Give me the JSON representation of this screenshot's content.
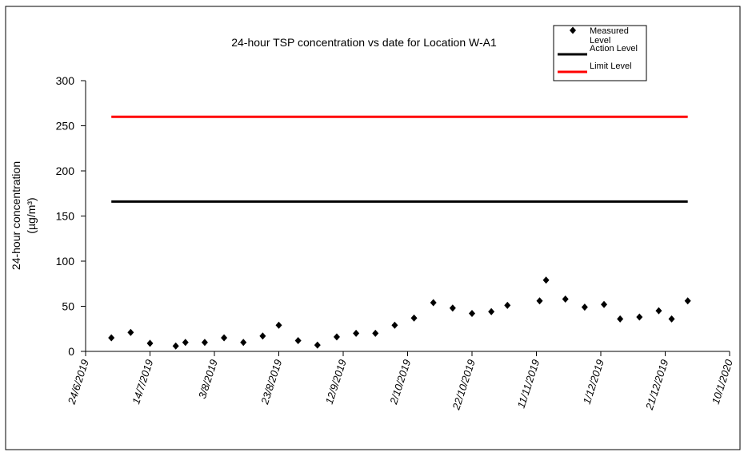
{
  "chart_data": {
    "type": "scatter",
    "title": "24-hour TSP concentration vs date for Location W-A1",
    "y_label": [
      "24-hour concentration",
      "(µg/m³)"
    ],
    "xlim": [
      "24/6/2019",
      "10/1/2020"
    ],
    "xticks": [
      "24/6/2019",
      "14/7/2019",
      "3/8/2019",
      "23/8/2019",
      "12/9/2019",
      "2/10/2019",
      "22/10/2019",
      "11/11/2019",
      "1/12/2019",
      "21/12/2019",
      "10/1/2020"
    ],
    "ylim": [
      0,
      300
    ],
    "yticks": [
      0,
      50,
      100,
      150,
      200,
      250,
      300
    ],
    "legend": "top-right",
    "series": [
      {
        "name": "Measured Level",
        "color": "#000000",
        "style": "marker",
        "x": [
          "2/7/2019",
          "8/7/2019",
          "14/7/2019",
          "22/7/2019",
          "25/7/2019",
          "31/7/2019",
          "6/8/2019",
          "12/8/2019",
          "18/8/2019",
          "23/8/2019",
          "29/8/2019",
          "4/9/2019",
          "10/9/2019",
          "16/9/2019",
          "22/9/2019",
          "28/9/2019",
          "4/10/2019",
          "10/10/2019",
          "16/10/2019",
          "22/10/2019",
          "28/10/2019",
          "2/11/2019",
          "12/11/2019",
          "14/11/2019",
          "20/11/2019",
          "26/11/2019",
          "2/12/2019",
          "7/12/2019",
          "13/12/2019",
          "19/12/2019",
          "23/12/2019",
          "28/12/2019"
        ],
        "values": [
          15,
          21,
          9,
          6,
          10,
          10,
          15,
          10,
          17,
          29,
          12,
          7,
          16,
          20,
          20,
          29,
          37,
          54,
          48,
          42,
          44,
          51,
          56,
          79,
          58,
          49,
          52,
          36,
          38,
          45,
          36,
          56
        ]
      },
      {
        "name": "Action Level",
        "color": "#000000",
        "style": "line",
        "x": [
          "2/7/2019",
          "28/12/2019"
        ],
        "values": [
          166,
          166
        ]
      },
      {
        "name": "Limit Level",
        "color": "#ff0000",
        "style": "line",
        "x": [
          "2/7/2019",
          "28/12/2019"
        ],
        "values": [
          260,
          260
        ]
      }
    ]
  }
}
